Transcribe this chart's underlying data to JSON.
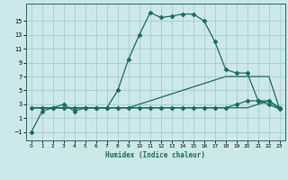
{
  "xlabel": "Humidex (Indice chaleur)",
  "background_color": "#cce8e8",
  "grid_color": "#aacccc",
  "line_color": "#1a6b5a",
  "x_ticks": [
    0,
    1,
    2,
    3,
    4,
    5,
    6,
    7,
    8,
    9,
    10,
    11,
    12,
    13,
    14,
    15,
    16,
    17,
    18,
    19,
    20,
    21,
    22,
    23
  ],
  "y_ticks": [
    -1,
    1,
    3,
    5,
    7,
    9,
    11,
    13,
    15
  ],
  "xlim": [
    -0.5,
    23.5
  ],
  "ylim": [
    -2.2,
    17.5
  ],
  "series": [
    {
      "x": [
        0,
        1,
        2,
        3,
        4,
        5,
        6,
        7,
        8,
        9,
        10,
        11,
        12,
        13,
        14,
        15,
        16,
        17,
        18,
        19,
        20,
        21,
        22,
        23
      ],
      "y": [
        -1,
        2,
        2.5,
        3,
        2,
        2.5,
        2.5,
        2.5,
        5,
        9.5,
        13,
        16.2,
        15.5,
        15.7,
        16,
        16,
        15,
        12,
        8,
        7.5,
        7.5,
        3.5,
        3.5,
        2.5
      ],
      "marker": "D",
      "markersize": 2.5,
      "linewidth": 0.9
    },
    {
      "x": [
        0,
        1,
        2,
        3,
        4,
        5,
        6,
        7,
        8,
        9,
        10,
        11,
        12,
        13,
        14,
        15,
        16,
        17,
        18,
        19,
        20,
        21,
        22,
        23
      ],
      "y": [
        2.5,
        2.5,
        2.5,
        2.5,
        2.5,
        2.5,
        2.5,
        2.5,
        2.5,
        2.5,
        3,
        3.5,
        4,
        4.5,
        5,
        5.5,
        6,
        6.5,
        7,
        7,
        7,
        7,
        7,
        2.3
      ],
      "marker": null,
      "markersize": 0,
      "linewidth": 0.9
    },
    {
      "x": [
        0,
        1,
        2,
        3,
        4,
        5,
        6,
        7,
        8,
        9,
        10,
        11,
        12,
        13,
        14,
        15,
        16,
        17,
        18,
        19,
        20,
        21,
        22,
        23
      ],
      "y": [
        2.5,
        2.5,
        2.5,
        2.5,
        2.5,
        2.5,
        2.5,
        2.5,
        2.5,
        2.5,
        2.5,
        2.5,
        2.5,
        2.5,
        2.5,
        2.5,
        2.5,
        2.5,
        2.5,
        2.5,
        2.5,
        3,
        3.5,
        2.3
      ],
      "marker": null,
      "markersize": 0,
      "linewidth": 0.9
    },
    {
      "x": [
        0,
        1,
        2,
        3,
        4,
        5,
        6,
        7,
        8,
        9,
        10,
        11,
        12,
        13,
        14,
        15,
        16,
        17,
        18,
        19,
        20,
        21,
        22,
        23
      ],
      "y": [
        2.5,
        2.5,
        2.5,
        2.5,
        2.5,
        2.5,
        2.5,
        2.5,
        2.5,
        2.5,
        2.5,
        2.5,
        2.5,
        2.5,
        2.5,
        2.5,
        2.5,
        2.5,
        2.5,
        3,
        3.5,
        3.5,
        3,
        2.3
      ],
      "marker": "D",
      "markersize": 2.5,
      "linewidth": 0.9
    }
  ]
}
